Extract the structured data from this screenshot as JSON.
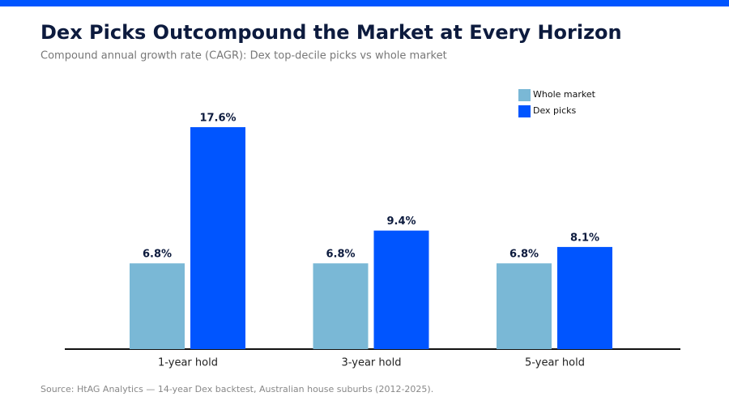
{
  "chart_data": {
    "type": "bar",
    "title": "Dex Picks Outcompound the Market at Every Horizon",
    "subtitle": "Compound annual growth rate (CAGR): Dex top-decile picks vs whole market",
    "source": "Source: HtAG Analytics — 14-year Dex backtest, Australian house suburbs (2012-2025).",
    "categories": [
      "1-year hold",
      "3-year hold",
      "5-year hold"
    ],
    "series": [
      {
        "name": "Whole market",
        "color": "#7ab8d6",
        "values": [
          6.8,
          6.8,
          6.8
        ],
        "value_labels": [
          "6.8%",
          "6.8%",
          "6.8%"
        ]
      },
      {
        "name": "Dex picks",
        "color": "#0055ff",
        "values": [
          17.6,
          9.4,
          8.1
        ],
        "value_labels": [
          "17.6%",
          "9.4%",
          "8.1%"
        ]
      }
    ],
    "legend": "upper right"
  }
}
